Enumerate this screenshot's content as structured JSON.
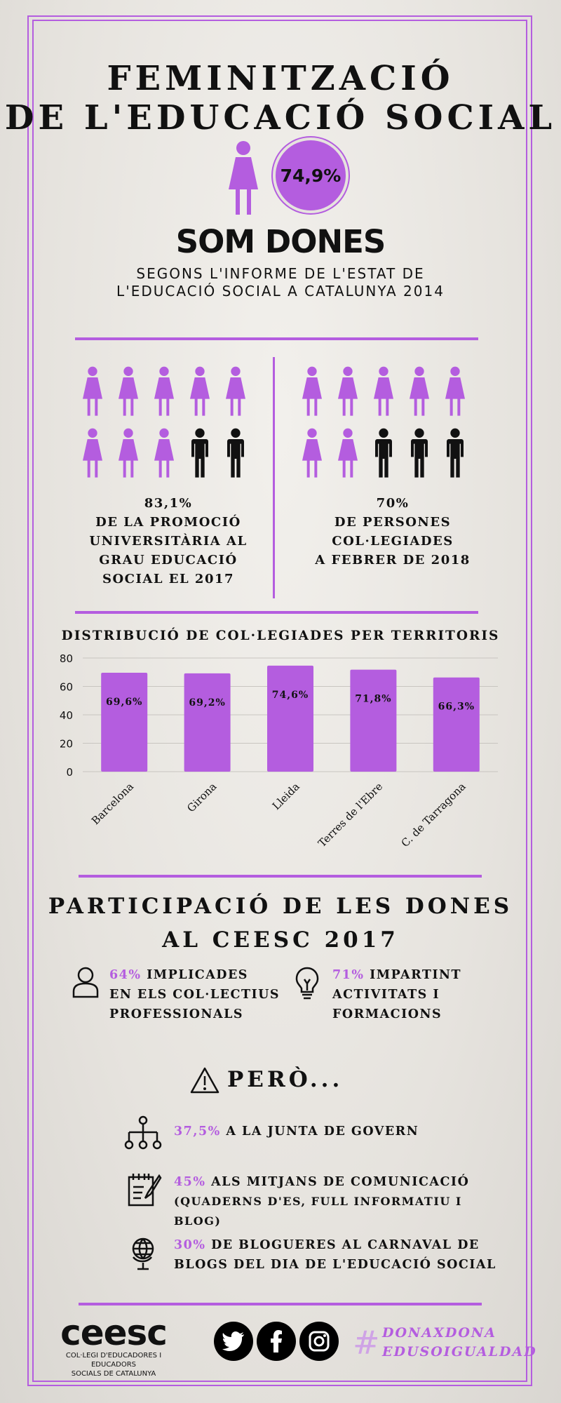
{
  "title": {
    "line1": "FEMINITZACIÓ",
    "line2": "DE L'EDUCACIÓ SOCIAL"
  },
  "headline": {
    "percent": "74,9%",
    "label": "SOM DONES",
    "source_line1": "SEGONS L'INFORME DE L'ESTAT DE",
    "source_line2": "L'EDUCACIÓ SOCIAL A CATALUNYA 2014"
  },
  "left_stat": {
    "percent": "83,1%",
    "line1": "DE LA PROMOCIÓ",
    "line2": "UNIVERSITÀRIA AL",
    "line3": "GRAU EDUCACIÓ",
    "line4": "SOCIAL EL 2017",
    "purple_figures": 8,
    "black_figures": 2
  },
  "right_stat": {
    "percent": "70%",
    "line1": "DE PERSONES",
    "line2": "COL·LEGIADES",
    "line3": "A FEBRER DE 2018",
    "purple_figures": 7,
    "black_figures": 3
  },
  "chart_data": {
    "type": "bar",
    "title": "DISTRIBUCIÓ DE COL·LEGIADES PER TERRITORIS",
    "categories": [
      "Barcelona",
      "Girona",
      "Lleida",
      "Terres de l'Ebre",
      "C. de Tarragona"
    ],
    "values": [
      69.6,
      69.2,
      74.6,
      71.8,
      66.3
    ],
    "value_labels": [
      "69,6%",
      "69,2%",
      "74,6%",
      "71,8%",
      "66,3%"
    ],
    "yticks": [
      "0",
      "20",
      "40",
      "60",
      "80"
    ],
    "ylim": [
      0,
      80
    ],
    "grid": true,
    "color": "#b45ddf"
  },
  "participation": {
    "title_line1": "PARTICIPACIÓ DE LES DONES",
    "title_line2": "AL CEESC 2017",
    "left": {
      "percent": "64%",
      "text1": " IMPLICADES",
      "text2": "EN ELS COL·LECTIUS",
      "text3": "PROFESSIONALS",
      "icon": "person-icon"
    },
    "right": {
      "percent": "71%",
      "text1": " IMPARTINT",
      "text2": "ACTIVITATS I",
      "text3": "FORMACIONS",
      "icon": "lightbulb-icon"
    }
  },
  "pero": {
    "label": "PERÒ...",
    "items": [
      {
        "percent": "37,5%",
        "text": " A LA JUNTA DE GOVERN",
        "icon": "org-chart-icon"
      },
      {
        "percent": "45%",
        "text": " ALS MITJANS DE COMUNICACIÓ",
        "text2": "(QUADERNS D'ES, FULL INFORMATIU I BLOG)",
        "icon": "notepad-icon"
      },
      {
        "percent": "30%",
        "text": " DE BLOGUERES AL CARNAVAL DE",
        "text2": "BLOGS DEL DIA DE L'EDUCACIÓ SOCIAL",
        "icon": "globe-icon"
      }
    ]
  },
  "footer": {
    "logo": "ceesc",
    "logo_sub1": "COL·LEGI D'EDUCADORES I EDUCADORS",
    "logo_sub2": "SOCIALS DE CATALUNYA",
    "hashtag1": "DONAXDONA",
    "hashtag2": "EDUSOIGUALDAD",
    "social": [
      "twitter-icon",
      "facebook-icon",
      "instagram-icon"
    ]
  },
  "colors": {
    "accent": "#b45ddf",
    "ink": "#111111",
    "background": "#e6e3de"
  }
}
